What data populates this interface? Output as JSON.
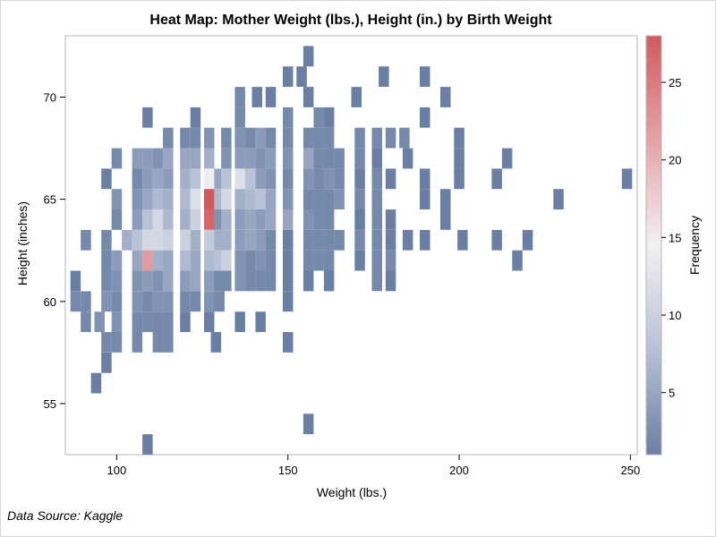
{
  "chart_data": {
    "type": "heatmap",
    "title": "Heat Map: Mother Weight (lbs.), Height (in.) by Birth Weight",
    "xlabel": "Weight (lbs.)",
    "ylabel": "Height (inches)",
    "xlim": [
      85,
      252
    ],
    "ylim": [
      52.5,
      73
    ],
    "x_ticks": [
      100,
      150,
      200,
      250
    ],
    "y_ticks": [
      55,
      60,
      65,
      70
    ],
    "cell_width": 3,
    "cell_height": 1,
    "colorbar": {
      "label": "Frequency",
      "range": [
        1,
        28
      ],
      "ticks": [
        5,
        10,
        15,
        20,
        25
      ],
      "colors": [
        "#6a7fa3",
        "#b7c1d6",
        "#f3f0f2",
        "#e4a3a8",
        "#d25a5e"
      ]
    },
    "cells": [
      [
        156,
        72,
        1
      ],
      [
        150,
        71,
        1
      ],
      [
        154,
        71,
        1
      ],
      [
        178,
        71,
        1
      ],
      [
        190,
        71,
        1
      ],
      [
        136,
        70,
        2
      ],
      [
        141,
        70,
        1
      ],
      [
        145,
        70,
        1
      ],
      [
        156,
        70,
        1
      ],
      [
        170,
        70,
        1
      ],
      [
        196,
        70,
        1
      ],
      [
        109,
        69,
        1
      ],
      [
        123,
        69,
        1
      ],
      [
        136,
        69,
        2
      ],
      [
        150,
        69,
        2
      ],
      [
        159,
        69,
        2
      ],
      [
        162,
        69,
        1
      ],
      [
        190,
        69,
        1
      ],
      [
        115,
        68,
        2
      ],
      [
        120,
        68,
        2
      ],
      [
        123,
        68,
        2
      ],
      [
        127,
        68,
        3
      ],
      [
        132,
        68,
        2
      ],
      [
        136,
        68,
        3
      ],
      [
        139,
        68,
        2
      ],
      [
        142,
        68,
        4
      ],
      [
        145,
        68,
        2
      ],
      [
        150,
        68,
        2
      ],
      [
        156,
        68,
        2
      ],
      [
        159,
        68,
        2
      ],
      [
        162,
        68,
        2
      ],
      [
        171,
        68,
        2
      ],
      [
        176,
        68,
        2
      ],
      [
        180,
        68,
        2
      ],
      [
        184,
        68,
        2
      ],
      [
        200,
        68,
        1
      ],
      [
        100,
        67,
        2
      ],
      [
        106,
        67,
        4
      ],
      [
        109,
        67,
        4
      ],
      [
        112,
        67,
        3
      ],
      [
        115,
        67,
        5
      ],
      [
        120,
        67,
        5
      ],
      [
        123,
        67,
        5
      ],
      [
        127,
        67,
        6
      ],
      [
        132,
        67,
        3
      ],
      [
        136,
        67,
        4
      ],
      [
        139,
        67,
        4
      ],
      [
        142,
        67,
        3
      ],
      [
        145,
        67,
        4
      ],
      [
        150,
        67,
        3
      ],
      [
        156,
        67,
        5
      ],
      [
        159,
        67,
        2
      ],
      [
        162,
        67,
        2
      ],
      [
        165,
        67,
        2
      ],
      [
        171,
        67,
        2
      ],
      [
        176,
        67,
        1
      ],
      [
        185,
        67,
        1
      ],
      [
        200,
        67,
        1
      ],
      [
        214,
        67,
        1
      ],
      [
        97,
        66,
        1
      ],
      [
        106,
        66,
        2
      ],
      [
        109,
        66,
        4
      ],
      [
        112,
        66,
        5
      ],
      [
        115,
        66,
        4
      ],
      [
        120,
        66,
        6
      ],
      [
        123,
        66,
        8
      ],
      [
        127,
        66,
        14
      ],
      [
        130,
        66,
        5
      ],
      [
        132,
        66,
        8
      ],
      [
        136,
        66,
        12
      ],
      [
        139,
        66,
        8
      ],
      [
        142,
        66,
        4
      ],
      [
        145,
        66,
        3
      ],
      [
        150,
        66,
        2
      ],
      [
        156,
        66,
        3
      ],
      [
        159,
        66,
        2
      ],
      [
        162,
        66,
        3
      ],
      [
        165,
        66,
        2
      ],
      [
        171,
        66,
        1
      ],
      [
        176,
        66,
        2
      ],
      [
        180,
        66,
        1
      ],
      [
        190,
        66,
        1
      ],
      [
        200,
        66,
        1
      ],
      [
        211,
        66,
        1
      ],
      [
        249,
        66,
        1
      ],
      [
        100,
        65,
        3
      ],
      [
        106,
        65,
        3
      ],
      [
        109,
        65,
        5
      ],
      [
        112,
        65,
        7
      ],
      [
        115,
        65,
        6
      ],
      [
        120,
        65,
        7
      ],
      [
        123,
        65,
        12
      ],
      [
        127,
        65,
        28
      ],
      [
        130,
        65,
        7
      ],
      [
        132,
        65,
        11
      ],
      [
        136,
        65,
        6
      ],
      [
        139,
        65,
        7
      ],
      [
        142,
        65,
        8
      ],
      [
        145,
        65,
        5
      ],
      [
        150,
        65,
        3
      ],
      [
        156,
        65,
        2
      ],
      [
        159,
        65,
        2
      ],
      [
        162,
        65,
        2
      ],
      [
        165,
        65,
        3
      ],
      [
        171,
        65,
        2
      ],
      [
        176,
        65,
        2
      ],
      [
        190,
        65,
        1
      ],
      [
        196,
        65,
        1
      ],
      [
        229,
        65,
        1
      ],
      [
        100,
        64,
        2
      ],
      [
        106,
        64,
        4
      ],
      [
        109,
        64,
        8
      ],
      [
        112,
        64,
        11
      ],
      [
        115,
        64,
        7
      ],
      [
        120,
        64,
        6
      ],
      [
        123,
        64,
        10
      ],
      [
        127,
        64,
        27
      ],
      [
        130,
        64,
        3
      ],
      [
        132,
        64,
        6
      ],
      [
        136,
        64,
        4
      ],
      [
        139,
        64,
        5
      ],
      [
        142,
        64,
        4
      ],
      [
        145,
        64,
        5
      ],
      [
        150,
        64,
        5
      ],
      [
        156,
        64,
        3
      ],
      [
        159,
        64,
        2
      ],
      [
        162,
        64,
        2
      ],
      [
        171,
        64,
        1
      ],
      [
        176,
        64,
        2
      ],
      [
        180,
        64,
        1
      ],
      [
        196,
        64,
        1
      ],
      [
        91,
        63,
        2
      ],
      [
        97,
        63,
        2
      ],
      [
        103,
        63,
        6
      ],
      [
        106,
        63,
        8
      ],
      [
        109,
        63,
        11
      ],
      [
        112,
        63,
        11
      ],
      [
        115,
        63,
        10
      ],
      [
        120,
        63,
        10
      ],
      [
        123,
        63,
        6
      ],
      [
        127,
        63,
        9
      ],
      [
        130,
        63,
        6
      ],
      [
        132,
        63,
        6
      ],
      [
        136,
        63,
        4
      ],
      [
        139,
        63,
        5
      ],
      [
        142,
        63,
        4
      ],
      [
        145,
        63,
        2
      ],
      [
        150,
        63,
        1
      ],
      [
        156,
        63,
        2
      ],
      [
        159,
        63,
        2
      ],
      [
        162,
        63,
        2
      ],
      [
        165,
        63,
        2
      ],
      [
        171,
        63,
        2
      ],
      [
        176,
        63,
        2
      ],
      [
        180,
        63,
        1
      ],
      [
        185,
        63,
        1
      ],
      [
        190,
        63,
        1
      ],
      [
        201,
        63,
        1
      ],
      [
        211,
        63,
        1
      ],
      [
        220,
        63,
        1
      ],
      [
        97,
        62,
        2
      ],
      [
        100,
        62,
        4
      ],
      [
        106,
        62,
        5
      ],
      [
        109,
        62,
        22
      ],
      [
        112,
        62,
        6
      ],
      [
        115,
        62,
        5
      ],
      [
        120,
        62,
        7
      ],
      [
        123,
        62,
        5
      ],
      [
        127,
        62,
        7
      ],
      [
        130,
        62,
        8
      ],
      [
        132,
        62,
        10
      ],
      [
        136,
        62,
        3
      ],
      [
        139,
        62,
        2
      ],
      [
        142,
        62,
        3
      ],
      [
        145,
        62,
        2
      ],
      [
        150,
        62,
        1
      ],
      [
        156,
        62,
        2
      ],
      [
        159,
        62,
        2
      ],
      [
        162,
        62,
        2
      ],
      [
        171,
        62,
        1
      ],
      [
        176,
        62,
        2
      ],
      [
        180,
        62,
        2
      ],
      [
        217,
        62,
        1
      ],
      [
        88,
        61,
        1
      ],
      [
        97,
        61,
        2
      ],
      [
        100,
        61,
        3
      ],
      [
        106,
        61,
        3
      ],
      [
        109,
        61,
        4
      ],
      [
        112,
        61,
        3
      ],
      [
        115,
        61,
        5
      ],
      [
        120,
        61,
        4
      ],
      [
        123,
        61,
        5
      ],
      [
        127,
        61,
        4
      ],
      [
        130,
        61,
        2
      ],
      [
        132,
        61,
        2
      ],
      [
        136,
        61,
        3
      ],
      [
        139,
        61,
        2
      ],
      [
        142,
        61,
        2
      ],
      [
        145,
        61,
        2
      ],
      [
        150,
        61,
        1
      ],
      [
        156,
        61,
        1
      ],
      [
        162,
        61,
        1
      ],
      [
        176,
        61,
        2
      ],
      [
        180,
        61,
        1
      ],
      [
        88,
        60,
        2
      ],
      [
        91,
        60,
        2
      ],
      [
        97,
        60,
        3
      ],
      [
        100,
        60,
        2
      ],
      [
        106,
        60,
        3
      ],
      [
        109,
        60,
        2
      ],
      [
        112,
        60,
        3
      ],
      [
        115,
        60,
        3
      ],
      [
        120,
        60,
        2
      ],
      [
        123,
        60,
        2
      ],
      [
        127,
        60,
        3
      ],
      [
        130,
        60,
        2
      ],
      [
        150,
        60,
        1
      ],
      [
        91,
        59,
        2
      ],
      [
        95,
        59,
        3
      ],
      [
        100,
        59,
        3
      ],
      [
        106,
        59,
        2
      ],
      [
        109,
        59,
        2
      ],
      [
        112,
        59,
        2
      ],
      [
        115,
        59,
        2
      ],
      [
        120,
        59,
        1
      ],
      [
        127,
        59,
        1
      ],
      [
        136,
        59,
        1
      ],
      [
        142,
        59,
        1
      ],
      [
        97,
        58,
        2
      ],
      [
        100,
        58,
        2
      ],
      [
        106,
        58,
        2
      ],
      [
        112,
        58,
        2
      ],
      [
        115,
        58,
        2
      ],
      [
        129,
        58,
        1
      ],
      [
        150,
        58,
        1
      ],
      [
        97,
        57,
        1
      ],
      [
        94,
        56,
        1
      ],
      [
        156,
        54,
        1
      ],
      [
        109,
        53,
        1
      ]
    ]
  },
  "footnote": "Data Source: Kaggle"
}
